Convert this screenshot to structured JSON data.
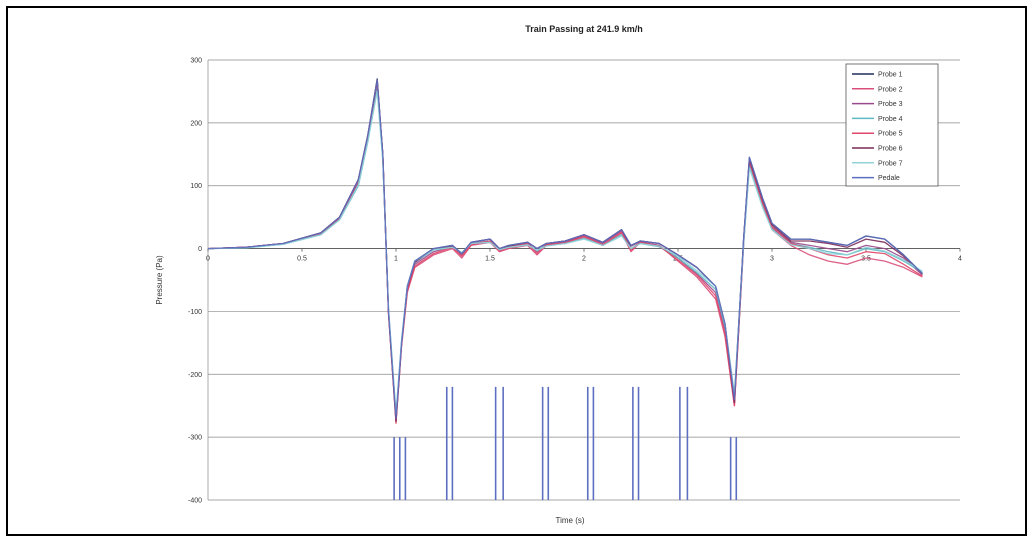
{
  "chart_data": {
    "type": "line",
    "title": "Train Passing at 241.9 km/h",
    "xlabel": "Time (s)",
    "ylabel": "Pressure (Pa)",
    "xlim": [
      0,
      4
    ],
    "ylim": [
      -400,
      300
    ],
    "xticks": [
      0,
      0.5,
      1,
      1.5,
      2,
      2.5,
      3,
      3.5,
      4
    ],
    "xtick_labels": [
      "0",
      "0.5",
      "1",
      "1.5",
      "2",
      "2.5",
      "3",
      "3.5",
      "4"
    ],
    "yticks": [
      300,
      200,
      100,
      0,
      -100,
      -200,
      -300,
      -400
    ],
    "ytick_labels": [
      "300",
      "200",
      "100",
      "0",
      "-100",
      "-200",
      "-300",
      "-400"
    ],
    "grid": "horizontal",
    "legend_position": "top-right",
    "legend": [
      "Probe 1",
      "Probe 2",
      "Probe 3",
      "Probe 4",
      "Probe 5",
      "Probe 6",
      "Probe 7",
      "Pedale"
    ],
    "x": [
      0,
      0.2,
      0.4,
      0.6,
      0.7,
      0.8,
      0.85,
      0.9,
      0.93,
      0.96,
      1.0,
      1.03,
      1.06,
      1.1,
      1.2,
      1.3,
      1.35,
      1.4,
      1.5,
      1.55,
      1.6,
      1.7,
      1.75,
      1.8,
      1.9,
      2.0,
      2.1,
      2.2,
      2.25,
      2.3,
      2.4,
      2.5,
      2.6,
      2.7,
      2.75,
      2.8,
      2.85,
      2.88,
      2.95,
      3.0,
      3.1,
      3.2,
      3.3,
      3.4,
      3.5,
      3.6,
      3.7,
      3.8
    ],
    "series": [
      {
        "name": "Probe 1",
        "color": "#1f2d5a",
        "values": [
          0,
          2,
          8,
          25,
          50,
          110,
          180,
          270,
          150,
          -100,
          -270,
          -150,
          -60,
          -20,
          0,
          5,
          -8,
          10,
          15,
          0,
          5,
          10,
          0,
          8,
          12,
          22,
          10,
          30,
          5,
          12,
          8,
          -10,
          -30,
          -60,
          -120,
          -240,
          20,
          145,
          80,
          40,
          15,
          15,
          10,
          5,
          20,
          15,
          -10,
          -40
        ]
      },
      {
        "name": "Probe 2",
        "color": "#d94f7a",
        "values": [
          0,
          2,
          8,
          22,
          48,
          105,
          175,
          262,
          145,
          -105,
          -275,
          -155,
          -70,
          -30,
          -10,
          0,
          -15,
          5,
          10,
          -5,
          0,
          5,
          -10,
          5,
          8,
          18,
          5,
          25,
          -5,
          10,
          5,
          -20,
          -45,
          -80,
          -140,
          -250,
          10,
          135,
          70,
          30,
          5,
          -10,
          -20,
          -25,
          -15,
          -20,
          -30,
          -45
        ]
      },
      {
        "name": "Probe 3",
        "color": "#9a4a8c",
        "values": [
          0,
          2,
          7,
          23,
          47,
          104,
          172,
          260,
          145,
          -100,
          -272,
          -150,
          -65,
          -25,
          -5,
          3,
          -10,
          8,
          12,
          -3,
          3,
          8,
          -5,
          6,
          10,
          20,
          8,
          28,
          0,
          10,
          5,
          -15,
          -40,
          -70,
          -130,
          -245,
          15,
          140,
          75,
          35,
          10,
          5,
          0,
          -5,
          5,
          0,
          -15,
          -42
        ]
      },
      {
        "name": "Probe 4",
        "color": "#5fb8c4",
        "values": [
          0,
          1,
          7,
          22,
          46,
          100,
          170,
          255,
          140,
          -95,
          -265,
          -145,
          -60,
          -22,
          -2,
          2,
          -8,
          8,
          10,
          -2,
          2,
          6,
          -3,
          5,
          8,
          16,
          6,
          22,
          0,
          8,
          3,
          -15,
          -38,
          -65,
          -125,
          -235,
          12,
          132,
          70,
          32,
          8,
          2,
          -5,
          -10,
          0,
          -5,
          -20,
          -38
        ]
      },
      {
        "name": "Probe 5",
        "color": "#e0476a",
        "values": [
          0,
          2,
          8,
          24,
          49,
          108,
          178,
          265,
          148,
          -102,
          -278,
          -152,
          -68,
          -28,
          -8,
          2,
          -12,
          6,
          12,
          -4,
          2,
          8,
          -8,
          6,
          9,
          20,
          6,
          26,
          -3,
          10,
          4,
          -18,
          -42,
          -75,
          -135,
          -250,
          14,
          138,
          72,
          34,
          8,
          0,
          -10,
          -15,
          -5,
          -8,
          -25,
          -44
        ]
      },
      {
        "name": "Probe 6",
        "color": "#7a2a58",
        "values": [
          0,
          2,
          8,
          25,
          50,
          110,
          180,
          268,
          150,
          -100,
          -275,
          -150,
          -62,
          -22,
          0,
          4,
          -8,
          10,
          15,
          0,
          4,
          10,
          0,
          8,
          12,
          22,
          10,
          30,
          4,
          12,
          8,
          -10,
          -30,
          -60,
          -120,
          -245,
          18,
          142,
          78,
          38,
          12,
          12,
          8,
          2,
          15,
          10,
          -12,
          -40
        ]
      },
      {
        "name": "Probe 7",
        "color": "#8fd3d8",
        "values": [
          0,
          1,
          7,
          22,
          46,
          102,
          170,
          250,
          140,
          -95,
          -262,
          -145,
          -60,
          -20,
          -2,
          2,
          -6,
          8,
          10,
          -2,
          2,
          6,
          -3,
          4,
          8,
          15,
          5,
          20,
          0,
          8,
          4,
          -12,
          -35,
          -60,
          -120,
          -230,
          10,
          128,
          65,
          30,
          6,
          0,
          -8,
          -10,
          2,
          -4,
          -18,
          -36
        ]
      },
      {
        "name": "Pedale",
        "color": "#5d6fc0",
        "values": [
          0,
          2,
          8,
          25,
          50,
          110,
          180,
          268,
          150,
          -100,
          -270,
          -150,
          -60,
          -20,
          0,
          5,
          -8,
          10,
          15,
          0,
          5,
          10,
          0,
          8,
          12,
          22,
          10,
          30,
          5,
          12,
          8,
          -10,
          -30,
          -60,
          -120,
          -240,
          20,
          145,
          80,
          40,
          15,
          15,
          10,
          5,
          20,
          15,
          -10,
          -40
        ]
      }
    ],
    "pulse_series": {
      "name": "Pedale",
      "color": "#5d6fc0",
      "baseline": -400,
      "pulses": [
        {
          "x": 0.99,
          "top": -300
        },
        {
          "x": 1.02,
          "top": -300
        },
        {
          "x": 1.05,
          "top": -300
        },
        {
          "x": 1.27,
          "top": -220
        },
        {
          "x": 1.3,
          "top": -220
        },
        {
          "x": 1.53,
          "top": -220
        },
        {
          "x": 1.57,
          "top": -220
        },
        {
          "x": 1.78,
          "top": -220
        },
        {
          "x": 1.81,
          "top": -220
        },
        {
          "x": 2.02,
          "top": -220
        },
        {
          "x": 2.05,
          "top": -220
        },
        {
          "x": 2.26,
          "top": -220
        },
        {
          "x": 2.29,
          "top": -220
        },
        {
          "x": 2.51,
          "top": -220
        },
        {
          "x": 2.55,
          "top": -220
        },
        {
          "x": 2.78,
          "top": -300
        },
        {
          "x": 2.81,
          "top": -300
        }
      ]
    }
  }
}
